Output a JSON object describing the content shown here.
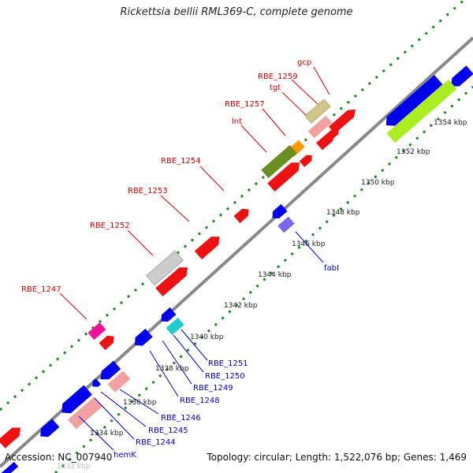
{
  "title": "Rickettsia bellii RML369-C, complete genome",
  "accession": "Accession: NC_007940",
  "summary": "Topology: circular; Length: 1,522,076 bp; Genes: 1,469",
  "colors": {
    "forward_label": "#d40000",
    "reverse_label": "#0000cc",
    "backbone": "#888888",
    "tick": "#1a8a1a"
  },
  "scale_labels": [
    "1332 kbp",
    "1334 kbp",
    "1336 kbp",
    "1338 kbp",
    "1340 kbp",
    "1342 kbp",
    "1344 kbp",
    "1346 kbp",
    "1348 kbp",
    "1350 kbp",
    "1352 kbp",
    "1354 kbp"
  ],
  "forward_gene_labels": [
    "gcp",
    "RBE_1259",
    "tgt",
    "RBE_1257",
    "lnt",
    "RBE_1254",
    "RBE_1253",
    "RBE_1252",
    "RBE_1247"
  ],
  "reverse_gene_labels": [
    "fabI",
    "RBE_1251",
    "RBE_1250",
    "RBE_1249",
    "RBE_1248",
    "RBE_1246",
    "RBE_1245",
    "RBE_1244",
    "hemK"
  ]
}
